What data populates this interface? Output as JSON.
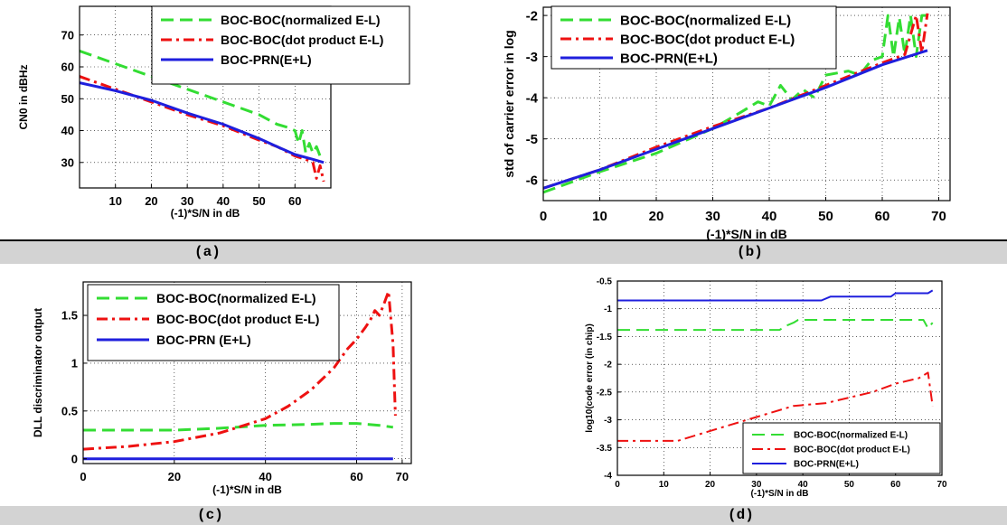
{
  "captions": [
    "(a)",
    "(b)",
    "(c)",
    "(d)"
  ],
  "colors": {
    "green": "#33dd33",
    "red": "#ee1111",
    "blue": "#1f1fdd"
  },
  "chart_data": [
    {
      "type": "line",
      "ylabel": "CN0 in dBHz",
      "xlabel": "(-1)*S/N in dB",
      "xlim": [
        0,
        70
      ],
      "ylim": [
        22,
        79
      ],
      "xticks": [
        10,
        20,
        30,
        40,
        50,
        60
      ],
      "yticks": [
        30,
        40,
        50,
        60,
        70
      ],
      "legend_position": "top-right",
      "series": [
        {
          "name": "BOC-BOC(normalized E-L)",
          "color": "green",
          "dash": "dash",
          "x": [
            0,
            10,
            20,
            30,
            40,
            50,
            55,
            58,
            60,
            61,
            62,
            63,
            64,
            65,
            66,
            67,
            68
          ],
          "y": [
            65,
            61,
            57,
            53,
            49,
            45,
            42,
            41,
            40,
            36,
            40,
            33,
            36,
            33,
            35,
            32,
            31
          ]
        },
        {
          "name": "BOC-BOC(dot product E-L)",
          "color": "red",
          "dash": "dashdot",
          "x": [
            0,
            10,
            20,
            30,
            40,
            50,
            55,
            60,
            63,
            65,
            66,
            67,
            68
          ],
          "y": [
            57,
            53,
            49,
            45,
            41.5,
            37,
            35,
            32,
            31,
            30,
            25,
            29,
            24
          ]
        },
        {
          "name": "BOC-PRN(E+L)",
          "color": "blue",
          "dash": "solid",
          "x": [
            0,
            10,
            20,
            30,
            40,
            50,
            55,
            60,
            65,
            68
          ],
          "y": [
            55,
            52.5,
            49.5,
            45.5,
            42,
            37.5,
            35,
            32.5,
            31,
            30
          ]
        }
      ]
    },
    {
      "type": "line",
      "ylabel": "std of carrier error in log",
      "xlabel": "(-1)*S/N in dB",
      "xlim": [
        0,
        72
      ],
      "ylim": [
        -6.5,
        -1.8
      ],
      "xticks": [
        0,
        10,
        20,
        30,
        40,
        50,
        60,
        70
      ],
      "yticks": [
        -6,
        -5,
        -4,
        -3,
        -2
      ],
      "legend_position": "top-right",
      "series": [
        {
          "name": "BOC-BOC(normalized E-L)",
          "color": "green",
          "dash": "dash",
          "x": [
            0,
            10,
            20,
            30,
            35,
            38,
            40,
            42,
            44,
            46,
            48,
            50,
            54,
            56,
            58,
            60,
            61,
            62,
            63,
            64,
            65,
            66,
            67,
            68
          ],
          "y": [
            -6.3,
            -5.8,
            -5.35,
            -4.75,
            -4.35,
            -4.1,
            -4.2,
            -3.7,
            -4.05,
            -3.8,
            -4.0,
            -3.45,
            -3.35,
            -3.45,
            -3.1,
            -3.0,
            -2.0,
            -3.0,
            -2.05,
            -2.95,
            -2.0,
            -3.0,
            -2.0,
            -2.0
          ]
        },
        {
          "name": "BOC-BOC(dot product E-L)",
          "color": "red",
          "dash": "dashdot",
          "x": [
            0,
            10,
            20,
            30,
            40,
            50,
            60,
            64,
            66,
            67,
            68
          ],
          "y": [
            -6.2,
            -5.75,
            -5.2,
            -4.7,
            -4.25,
            -3.7,
            -3.15,
            -2.95,
            -2.0,
            -2.9,
            -1.95
          ]
        },
        {
          "name": "BOC-PRN(E+L)",
          "color": "blue",
          "dash": "solid",
          "x": [
            0,
            10,
            20,
            30,
            40,
            50,
            60,
            68
          ],
          "y": [
            -6.2,
            -5.75,
            -5.25,
            -4.75,
            -4.25,
            -3.75,
            -3.2,
            -2.85
          ]
        }
      ]
    },
    {
      "type": "line",
      "ylabel": "DLL discriminator output",
      "xlabel": "(-1)*S/N in dB",
      "xlim": [
        0,
        72
      ],
      "ylim": [
        -0.05,
        1.85
      ],
      "xticks": [
        0,
        20,
        40,
        60,
        70
      ],
      "yticks": [
        0,
        0.5,
        1,
        1.5
      ],
      "ytick_labels": [
        "0",
        "0.5",
        "1",
        "1.5"
      ],
      "legend_position": "top-left",
      "series": [
        {
          "name": "BOC-BOC(normalized E-L)",
          "color": "green",
          "dash": "dash",
          "x": [
            0,
            20,
            30,
            40,
            50,
            55,
            60,
            65,
            68
          ],
          "y": [
            0.3,
            0.3,
            0.32,
            0.35,
            0.36,
            0.37,
            0.37,
            0.35,
            0.33
          ]
        },
        {
          "name": "BOC-BOC(dot product E-L)",
          "color": "red",
          "dash": "dashdot",
          "x": [
            0,
            10,
            20,
            30,
            40,
            45,
            50,
            55,
            58,
            60,
            62,
            63,
            64,
            65,
            66,
            67,
            68,
            68.5
          ],
          "y": [
            0.1,
            0.13,
            0.18,
            0.27,
            0.42,
            0.55,
            0.72,
            0.95,
            1.15,
            1.25,
            1.38,
            1.45,
            1.55,
            1.5,
            1.62,
            1.75,
            1.2,
            0.45
          ]
        },
        {
          "name": "BOC-PRN (E+L)",
          "color": "blue",
          "dash": "solid",
          "x": [
            0,
            68
          ],
          "y": [
            0,
            0
          ]
        }
      ]
    },
    {
      "type": "line",
      "ylabel": "log10(code error (in chip)",
      "xlabel": "(-1)*S/N in dB",
      "xlim": [
        0,
        70
      ],
      "ylim": [
        -4,
        -0.5
      ],
      "xticks": [
        0,
        10,
        20,
        30,
        40,
        50,
        60,
        70
      ],
      "yticks": [
        -4,
        -3.5,
        -3,
        -2.5,
        -2,
        -1.5,
        -1,
        -0.5
      ],
      "legend_position": "bottom-right",
      "series": [
        {
          "name": "BOC-BOC(normalized E-L)",
          "color": "green",
          "dash": "dash",
          "x": [
            0,
            35,
            36,
            38,
            39,
            40,
            66,
            67,
            68
          ],
          "y": [
            -1.38,
            -1.38,
            -1.32,
            -1.25,
            -1.2,
            -1.2,
            -1.2,
            -1.35,
            -1.25
          ]
        },
        {
          "name": "BOC-BOC(dot product E-L)",
          "color": "red",
          "dash": "dashdot",
          "x": [
            0,
            13,
            20,
            30,
            38,
            45,
            50,
            55,
            60,
            65,
            67,
            68
          ],
          "y": [
            -3.38,
            -3.38,
            -3.2,
            -2.95,
            -2.75,
            -2.7,
            -2.6,
            -2.5,
            -2.35,
            -2.25,
            -2.15,
            -2.75
          ]
        },
        {
          "name": "BOC-PRN(E+L)",
          "color": "blue",
          "dash": "solid",
          "x": [
            0,
            44,
            46,
            59,
            60,
            67,
            68
          ],
          "y": [
            -0.85,
            -0.85,
            -0.78,
            -0.78,
            -0.72,
            -0.72,
            -0.67
          ]
        }
      ]
    }
  ]
}
